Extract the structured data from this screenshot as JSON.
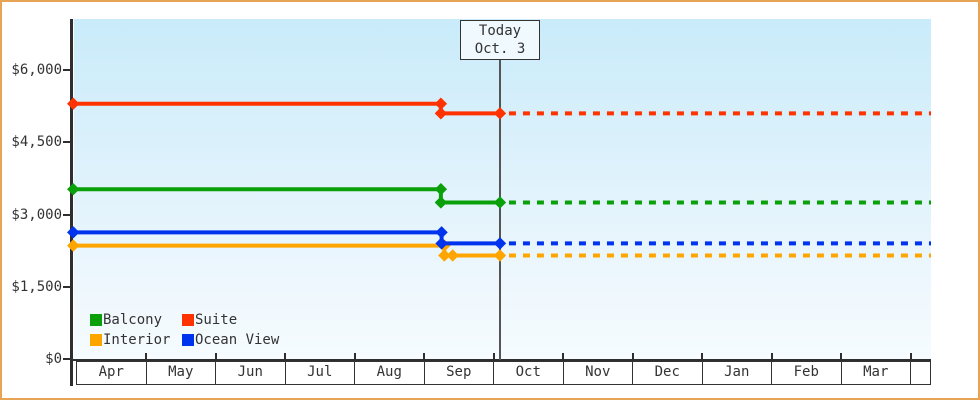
{
  "frame": {
    "border_color": "#e8a455",
    "background": "#ffffff"
  },
  "today_box": {
    "line1": "Today",
    "line2": "Oct. 3"
  },
  "legend": {
    "items": [
      {
        "label": "Balcony",
        "color": "#0aa00a"
      },
      {
        "label": "Suite",
        "color": "#ff3300"
      },
      {
        "label": "Interior",
        "color": "#ffa500"
      },
      {
        "label": "Ocean View",
        "color": "#0033ee"
      }
    ]
  },
  "chart_data": {
    "type": "line",
    "title": "",
    "xlabel": "",
    "ylabel": "",
    "x_axis": {
      "tick_labels": [
        "Apr",
        "May",
        "Jun",
        "Jul",
        "Aug",
        "Sep",
        "Oct",
        "Nov",
        "Dec",
        "Jan",
        "Feb",
        "Mar"
      ],
      "trailing_empty_cell": true
    },
    "y_axis": {
      "tick_labels": [
        "$0",
        "$1,500",
        "$3,000",
        "$4,500",
        "$6,000"
      ],
      "tick_values": [
        0,
        1500,
        3000,
        4500,
        6000
      ],
      "ylim": [
        0,
        7060
      ]
    },
    "grid": false,
    "legend_position": "bottom-left",
    "today": {
      "label": "Today",
      "date": "Oct. 3",
      "month_position": 6.09
    },
    "forecast_style": "dotted",
    "series": [
      {
        "name": "Interior",
        "color": "#ffa500",
        "history": [
          {
            "m": -0.05,
            "price": 2355
          },
          {
            "m": 5.29,
            "price": 2355
          },
          {
            "m": 5.29,
            "price": 2150
          },
          {
            "m": 5.41,
            "price": 2150
          },
          {
            "m": 6.09,
            "price": 2150
          }
        ],
        "forecast_price": 2150
      },
      {
        "name": "Ocean View",
        "color": "#0033ee",
        "history": [
          {
            "m": -0.05,
            "price": 2630
          },
          {
            "m": 5.25,
            "price": 2630
          },
          {
            "m": 5.25,
            "price": 2400
          },
          {
            "m": 6.09,
            "price": 2400
          }
        ],
        "forecast_price": 2400
      },
      {
        "name": "Balcony",
        "color": "#0aa00a",
        "history": [
          {
            "m": -0.05,
            "price": 3525
          },
          {
            "m": 5.24,
            "price": 3525
          },
          {
            "m": 5.24,
            "price": 3250
          },
          {
            "m": 6.09,
            "price": 3250
          }
        ],
        "forecast_price": 3250
      },
      {
        "name": "Suite",
        "color": "#ff3300",
        "history": [
          {
            "m": -0.05,
            "price": 5300
          },
          {
            "m": 5.24,
            "price": 5300
          },
          {
            "m": 5.24,
            "price": 5100
          },
          {
            "m": 6.09,
            "price": 5100
          }
        ],
        "forecast_price": 5100
      }
    ]
  }
}
